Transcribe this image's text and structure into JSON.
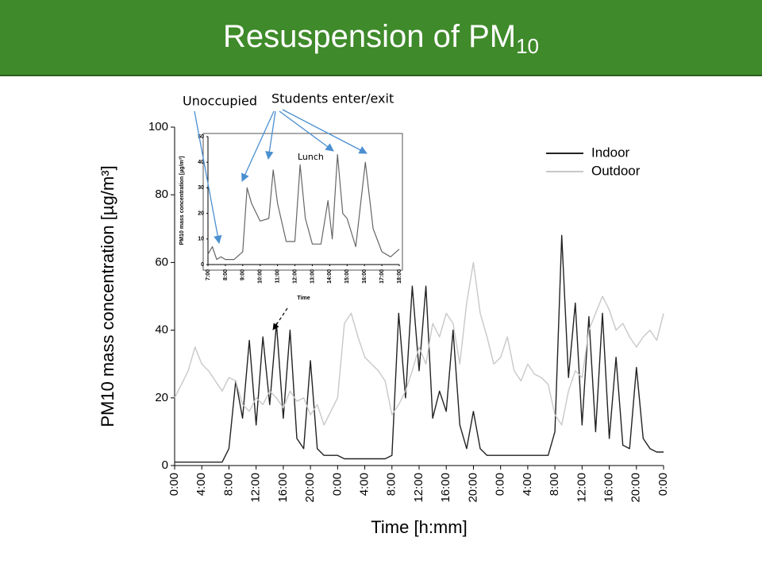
{
  "header": {
    "title": "Resuspension of PM",
    "title_subscript": "10"
  },
  "chart_data": [
    {
      "type": "line",
      "ylabel": "PM10 mass concentration [µg/m³]",
      "xlabel": "Time [h:mm]",
      "x": [
        0,
        1,
        2,
        3,
        4,
        5,
        6,
        7,
        8,
        9,
        10,
        11,
        12,
        13,
        14,
        15,
        16,
        17,
        18,
        19,
        20,
        21,
        22,
        23,
        24,
        25,
        26,
        27,
        28,
        29,
        30,
        31,
        32,
        33,
        34,
        35,
        36,
        37,
        38,
        39,
        40,
        41,
        42,
        43,
        44,
        45,
        46,
        47,
        48,
        49,
        50,
        51,
        52,
        53,
        54,
        55,
        56,
        57,
        58,
        59,
        60,
        61,
        62,
        63,
        64,
        65,
        66,
        67,
        68,
        69,
        70,
        71,
        72
      ],
      "series": [
        {
          "name": "Indoor",
          "color": "#222222",
          "values": [
            1,
            1,
            1,
            1,
            1,
            1,
            1,
            1,
            5,
            25,
            14,
            37,
            12,
            38,
            18,
            42,
            14,
            40,
            8,
            5,
            31,
            5,
            3,
            3,
            3,
            2,
            2,
            2,
            2,
            2,
            2,
            2,
            3,
            45,
            20,
            53,
            28,
            53,
            14,
            22,
            16,
            40,
            12,
            5,
            16,
            5,
            3,
            3,
            3,
            3,
            3,
            3,
            3,
            3,
            3,
            3,
            10,
            68,
            26,
            48,
            12,
            44,
            10,
            45,
            8,
            32,
            6,
            5,
            29,
            8,
            5,
            4,
            4
          ]
        },
        {
          "name": "Outdoor",
          "color": "#c8c8c8",
          "values": [
            20,
            24,
            28,
            35,
            30,
            28,
            25,
            22,
            26,
            25,
            18,
            16,
            20,
            18,
            22,
            20,
            17,
            22,
            19,
            20,
            15,
            18,
            12,
            16,
            20,
            42,
            45,
            38,
            32,
            30,
            28,
            25,
            15,
            18,
            22,
            28,
            35,
            30,
            42,
            38,
            45,
            42,
            30,
            48,
            60,
            45,
            38,
            30,
            32,
            38,
            28,
            25,
            30,
            27,
            26,
            24,
            15,
            12,
            22,
            28,
            26,
            40,
            45,
            50,
            46,
            40,
            42,
            38,
            35,
            38,
            40,
            37,
            45
          ]
        }
      ],
      "xlim": [
        0,
        72
      ],
      "xticks": [
        {
          "value": 0,
          "label": "0:00"
        },
        {
          "value": 4,
          "label": "4:00"
        },
        {
          "value": 8,
          "label": "8:00"
        },
        {
          "value": 12,
          "label": "12:00"
        },
        {
          "value": 16,
          "label": "16:00"
        },
        {
          "value": 20,
          "label": "20:00"
        },
        {
          "value": 24,
          "label": "0:00"
        },
        {
          "value": 28,
          "label": "4:00"
        },
        {
          "value": 32,
          "label": "8:00"
        },
        {
          "value": 36,
          "label": "12:00"
        },
        {
          "value": 40,
          "label": "16:00"
        },
        {
          "value": 44,
          "label": "20:00"
        },
        {
          "value": 48,
          "label": "0:00"
        },
        {
          "value": 52,
          "label": "4:00"
        },
        {
          "value": 56,
          "label": "8:00"
        },
        {
          "value": 60,
          "label": "12:00"
        },
        {
          "value": 64,
          "label": "16:00"
        },
        {
          "value": 68,
          "label": "20:00"
        },
        {
          "value": 72,
          "label": "0:00"
        }
      ],
      "ylim": [
        0,
        100
      ],
      "yticks": [
        0,
        20,
        40,
        60,
        80,
        100
      ],
      "legend": "upper right"
    },
    {
      "type": "line",
      "ylabel": "PM10 mass concentration [µg/m³]",
      "xlabel": "Time",
      "annotations": [
        "Unoccupied",
        "Students enter/exit",
        "Lunch"
      ],
      "x": [
        7,
        7.25,
        7.5,
        7.75,
        8,
        8.5,
        9,
        9.25,
        9.5,
        10,
        10.5,
        10.75,
        11,
        11.5,
        12,
        12.3,
        12.6,
        13,
        13.5,
        13.9,
        14.15,
        14.45,
        14.75,
        15,
        15.5,
        16.05,
        16.5,
        17,
        17.5,
        18
      ],
      "series": [
        {
          "color": "#666666",
          "values": [
            4,
            7,
            2,
            3,
            2,
            2,
            5,
            30,
            24,
            17,
            18,
            37,
            24,
            9,
            9,
            39,
            18,
            8,
            8,
            25,
            10,
            43,
            20,
            18,
            7,
            40,
            14,
            5,
            3,
            6
          ]
        }
      ],
      "xlim": [
        7,
        18
      ],
      "xticks": [
        {
          "value": 7,
          "label": "7:00"
        },
        {
          "value": 8,
          "label": "8:00"
        },
        {
          "value": 9,
          "label": "9:00"
        },
        {
          "value": 10,
          "label": "10:00"
        },
        {
          "value": 11,
          "label": "11:00"
        },
        {
          "value": 12,
          "label": "12:00"
        },
        {
          "value": 13,
          "label": "13:00"
        },
        {
          "value": 14,
          "label": "14:00"
        },
        {
          "value": 15,
          "label": "15:00"
        },
        {
          "value": 16,
          "label": "16:00"
        },
        {
          "value": 17,
          "label": "17:00"
        },
        {
          "value": 18,
          "label": "18:00"
        }
      ],
      "ylim": [
        0,
        50
      ],
      "yticks": [
        0,
        10,
        20,
        30,
        40,
        50
      ]
    }
  ]
}
